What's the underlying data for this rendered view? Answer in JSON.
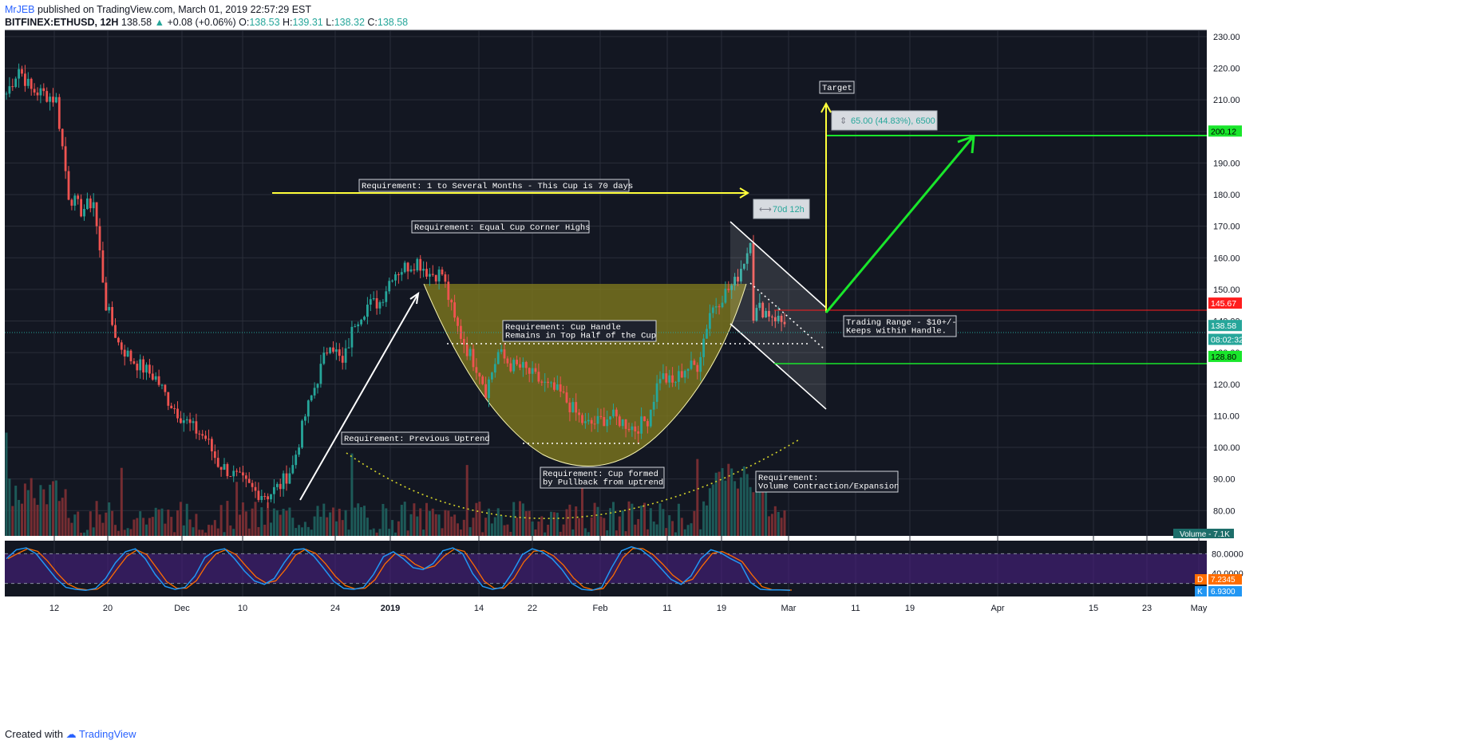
{
  "header": {
    "author": "MrJEB",
    "published": "published on TradingView.com, March 01, 2019 22:57:29 EST",
    "symbol": "BITFINEX:ETHUSD, 12H",
    "last": "138.58",
    "change": "+0.08 (+0.06%)",
    "o_label": "O:",
    "o": "138.53",
    "h_label": "H:",
    "h": "139.31",
    "l_label": "L:",
    "l": "138.32",
    "c_label": "C:",
    "c": "138.58"
  },
  "footer": {
    "created_with": "Created with",
    "brand": "TradingView"
  },
  "colors": {
    "bg": "#131722",
    "grid": "#2a2e39",
    "up": "#26a69a",
    "down": "#ef5350",
    "cup_fill": "#807a1e",
    "yellow": "#ffff3a",
    "green": "#19e62b",
    "red": "#ff1e1e",
    "stoch_k": "#2196f3",
    "stoch_d": "#ff6d00",
    "stoch_band": "#4a2082"
  },
  "chart_data": {
    "type": "candlestick",
    "symbol": "BITFINEX:ETHUSD",
    "timeframe": "12H",
    "price_axis": {
      "min": 72,
      "max": 232,
      "ticks": [
        80,
        90,
        100,
        110,
        120,
        130,
        140,
        150,
        160,
        170,
        180,
        190,
        200,
        210,
        220,
        230
      ],
      "tick_labels": [
        "80.00",
        "90.00",
        "100.00",
        "110.00",
        "120.00",
        "130.00",
        "140.00",
        "150.00",
        "160.00",
        "170.00",
        "180.00",
        "190.00",
        "200.00",
        "210.00",
        "220.00",
        "230.00"
      ]
    },
    "time_axis": {
      "labels": [
        "12",
        "20",
        "Dec",
        "10",
        "24",
        "2019",
        "14",
        "22",
        "Feb",
        "11",
        "19",
        "Mar",
        "11",
        "19",
        "Apr",
        "15",
        "23",
        "May"
      ]
    },
    "close_path": [
      [
        0,
        212
      ],
      [
        4,
        220
      ],
      [
        8,
        213
      ],
      [
        12,
        212
      ],
      [
        16,
        210
      ],
      [
        20,
        180
      ],
      [
        24,
        175
      ],
      [
        28,
        178
      ],
      [
        32,
        145
      ],
      [
        36,
        133
      ],
      [
        40,
        128
      ],
      [
        44,
        125
      ],
      [
        48,
        122
      ],
      [
        52,
        115
      ],
      [
        56,
        110
      ],
      [
        60,
        106
      ],
      [
        64,
        103
      ],
      [
        68,
        95
      ],
      [
        72,
        92
      ],
      [
        76,
        89
      ],
      [
        80,
        86
      ],
      [
        84,
        85
      ],
      [
        88,
        88
      ],
      [
        92,
        94
      ],
      [
        96,
        110
      ],
      [
        100,
        122
      ],
      [
        104,
        134
      ],
      [
        108,
        126
      ],
      [
        112,
        140
      ],
      [
        116,
        145
      ],
      [
        120,
        146
      ],
      [
        124,
        155
      ],
      [
        128,
        157
      ],
      [
        132,
        159
      ],
      [
        136,
        155
      ],
      [
        140,
        155
      ],
      [
        144,
        140
      ],
      [
        148,
        131
      ],
      [
        152,
        124
      ],
      [
        154,
        118
      ],
      [
        158,
        130
      ],
      [
        162,
        126
      ],
      [
        166,
        125
      ],
      [
        170,
        122
      ],
      [
        174,
        119
      ],
      [
        178,
        117
      ],
      [
        182,
        112
      ],
      [
        186,
        107
      ],
      [
        190,
        108
      ],
      [
        194,
        110
      ],
      [
        198,
        108
      ],
      [
        202,
        106
      ],
      [
        206,
        109
      ],
      [
        210,
        123
      ],
      [
        214,
        120
      ],
      [
        218,
        125
      ],
      [
        222,
        126
      ],
      [
        226,
        143
      ],
      [
        230,
        148
      ],
      [
        234,
        152
      ],
      [
        238,
        162
      ],
      [
        239,
        167
      ],
      [
        240,
        142
      ],
      [
        242,
        144
      ],
      [
        246,
        142
      ],
      [
        250,
        139
      ]
    ],
    "volume_label": "Volume",
    "volume_value": "7.1K",
    "stochastic": {
      "k_label": "K",
      "k": "6.9300",
      "d_label": "D",
      "d": "7.2345",
      "ticks": [
        "80.0000",
        "40.0000"
      ],
      "k_series": [
        70,
        88,
        92,
        80,
        55,
        30,
        12,
        8,
        6,
        10,
        30,
        62,
        84,
        90,
        70,
        38,
        14,
        8,
        12,
        35,
        72,
        86,
        90,
        70,
        45,
        25,
        18,
        30,
        62,
        88,
        90,
        75,
        50,
        24,
        10,
        8,
        12,
        38,
        74,
        84,
        70,
        52,
        48,
        60,
        86,
        92,
        80,
        40,
        14,
        8,
        12,
        42,
        78,
        90,
        84,
        70,
        48,
        20,
        8,
        6,
        12,
        52,
        86,
        94,
        88,
        72,
        50,
        28,
        18,
        35,
        70,
        88,
        82,
        70,
        60,
        22,
        8,
        7,
        7,
        6
      ]
    },
    "price_labels": [
      {
        "label": "200.12",
        "price": 200.12,
        "color": "#19e62b"
      },
      {
        "label": "145.67",
        "price": 145.67,
        "color": "#ff1e1e"
      },
      {
        "label": "138.58",
        "price": 138.58,
        "color": "#26a69a"
      },
      {
        "label": "08:02:32",
        "price": 134.2,
        "color": "#26a69a"
      },
      {
        "label": "128.80",
        "price": 128.8,
        "color": "#19e62b"
      }
    ],
    "annotations": {
      "cup_duration": "Requirement: 1 to Several Months - This Cup is 70 days",
      "corner_highs": "Requirement: Equal Cup Corner Highs",
      "handle_line1": "Requirement: Cup Handle",
      "handle_line2": "Remains in Top Half of the Cup",
      "prev_uptrend": "Requirement: Previous Uptrend",
      "cup_formed1": "Requirement: Cup formed",
      "cup_formed2": "by Pullback from uptrend",
      "volume1": "Requirement:",
      "volume2": "Volume Contraction/Expansion",
      "trading1": "Trading Range - $10+/-",
      "trading2": "Keeps within Handle.",
      "target": "Target",
      "measure": "65.00 (44.83%), 6500",
      "duration": "70d 12h"
    }
  }
}
